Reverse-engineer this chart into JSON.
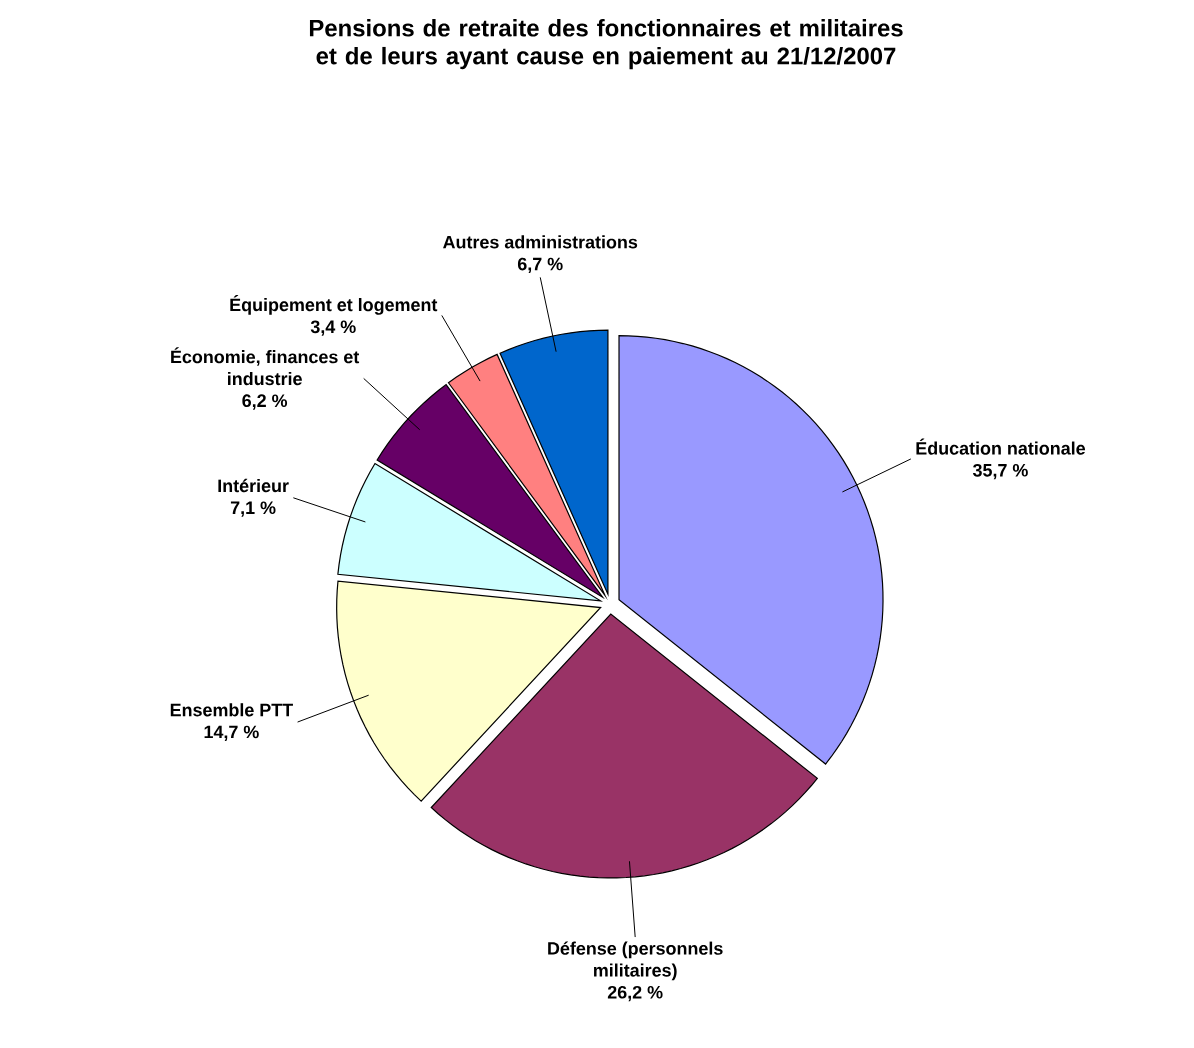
{
  "chart_data": {
    "type": "pie",
    "title": "Pensions de retraite des fonctionnaires et militaires et de leurs ayant cause en paiement au 21/12/2007",
    "categories": [
      "Éducation nationale",
      "Défense (personnels militaires)",
      "Ensemble PTT",
      "Intérieur",
      "Économie, finances et industrie",
      "Équipement et logement",
      "Autres administrations"
    ],
    "values": [
      35.7,
      26.2,
      14.7,
      7.1,
      6.2,
      3.4,
      6.7
    ],
    "value_labels": [
      "35,7 %",
      "26,2 %",
      "14,7 %",
      "7,1 %",
      "6,2 %",
      "3,4 %",
      "6,7 %"
    ],
    "colors": [
      "#9999ff",
      "#993366",
      "#ffffcc",
      "#ccffff",
      "#660066",
      "#ff8080",
      "#0066cc"
    ]
  }
}
